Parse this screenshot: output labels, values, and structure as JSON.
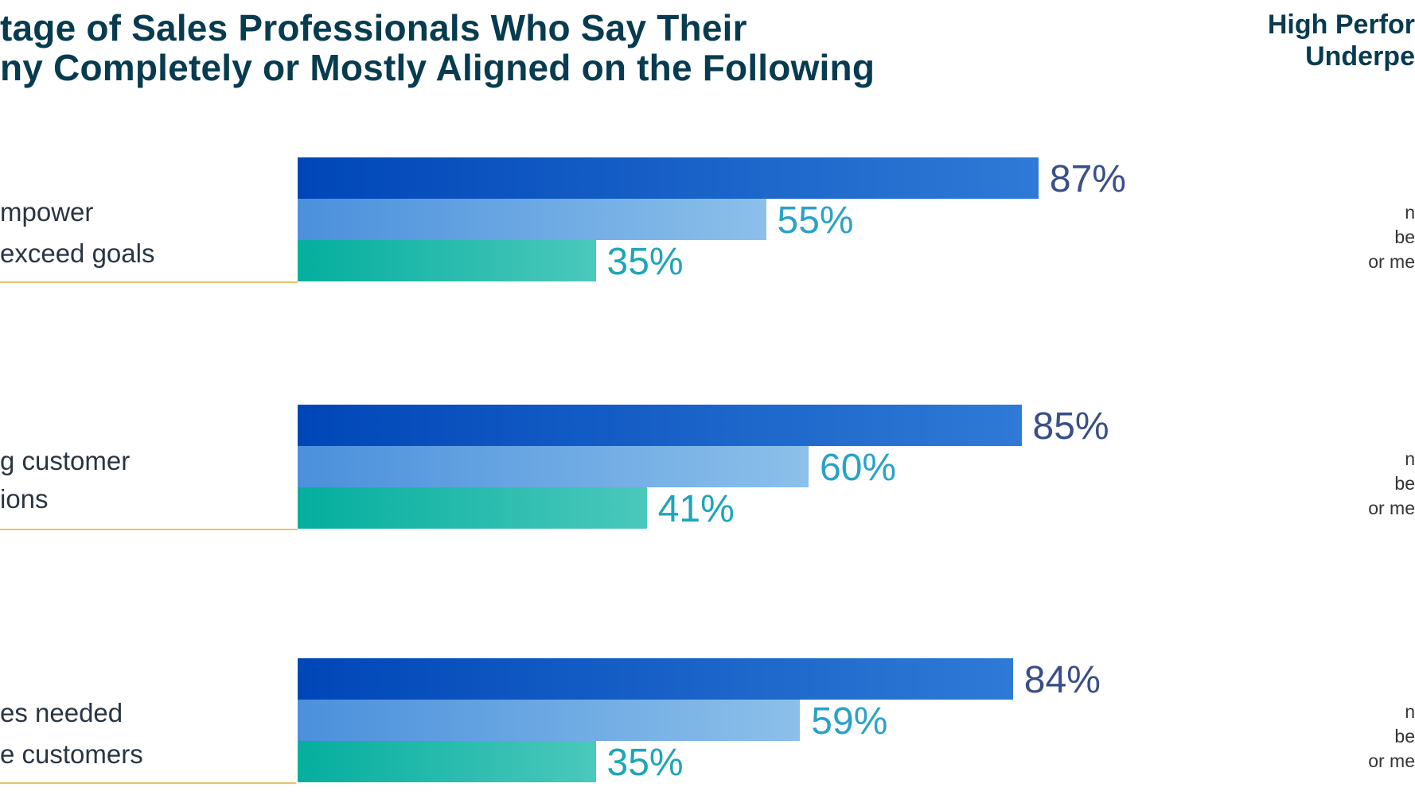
{
  "chart_data": {
    "type": "bar",
    "orientation": "horizontal",
    "title_lines": [
      "tage of Sales Professionals Who Say Their",
      "ny Completely or Mostly Aligned on the Following"
    ],
    "series_header_lines": [
      "High Perfor",
      "Underpe"
    ],
    "categories": [
      {
        "lines": [
          "mpower",
          "exceed goals"
        ]
      },
      {
        "lines": [
          "g customer",
          "ions"
        ]
      },
      {
        "lines": [
          "es needed",
          "e customers"
        ]
      }
    ],
    "series": [
      {
        "values": [
          87,
          85,
          84
        ]
      },
      {
        "values": [
          55,
          60,
          59
        ]
      },
      {
        "values": [
          35,
          41,
          35
        ]
      }
    ],
    "value_labels": [
      [
        "87%",
        "55%",
        "35%"
      ],
      [
        "85%",
        "60%",
        "41%"
      ],
      [
        "84%",
        "59%",
        "35%"
      ]
    ],
    "right_notes": [
      [
        "n",
        "be",
        "or me"
      ],
      [
        "n",
        "be",
        "or me"
      ],
      [
        "n",
        "be",
        "or me"
      ]
    ],
    "xlim": [
      0,
      100
    ],
    "grid": false,
    "colors": {
      "series0_start": "#0046b8",
      "series0_end": "#2f7ad6",
      "series1_start": "#4b90dc",
      "series1_end": "#8cc0ea",
      "series2_start": "#04ae9e",
      "series2_end": "#4bc8bc",
      "title": "#073b4f",
      "rule": "#e8c46a"
    }
  }
}
